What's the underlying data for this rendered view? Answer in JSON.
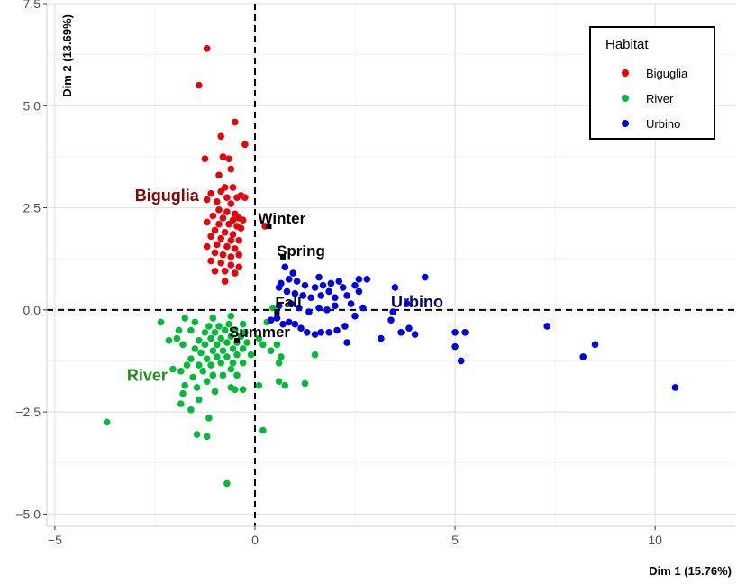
{
  "chart_data": {
    "type": "scatter",
    "xlabel": "Dim 1 (15.76%)",
    "ylabel": "Dim 2 (13.69%)",
    "xlim": [
      -5.2,
      12.0
    ],
    "ylim": [
      -5.3,
      7.5
    ],
    "x_ticks": [
      -5,
      0,
      5,
      10
    ],
    "y_ticks": [
      -5.0,
      -2.5,
      0.0,
      2.5,
      5.0,
      7.5
    ],
    "x_tick_labels": [
      "−5",
      "0",
      "5",
      "10"
    ],
    "y_tick_labels": [
      "−5.0",
      "−2.5",
      "0.0",
      "2.5",
      "5.0",
      "7.5"
    ],
    "grid": true,
    "reference_lines": {
      "x": 0,
      "y": 0,
      "style": "dashed"
    },
    "legend": {
      "title": "Habitat",
      "position": "top-right"
    },
    "series": [
      {
        "name": "Biguglia",
        "color": "#e8000b",
        "points": [
          [
            -1.2,
            6.4
          ],
          [
            -1.4,
            5.5
          ],
          [
            -0.5,
            4.6
          ],
          [
            -0.85,
            4.25
          ],
          [
            -0.25,
            4.05
          ],
          [
            -0.8,
            3.75
          ],
          [
            -1.25,
            3.7
          ],
          [
            -0.65,
            3.7
          ],
          [
            -0.6,
            3.45
          ],
          [
            -0.9,
            3.3
          ],
          [
            -0.75,
            3.0
          ],
          [
            -0.55,
            3.0
          ],
          [
            -0.85,
            2.9
          ],
          [
            -1.1,
            2.85
          ],
          [
            -0.35,
            2.8
          ],
          [
            -0.7,
            2.75
          ],
          [
            -0.45,
            2.75
          ],
          [
            -1.2,
            2.7
          ],
          [
            -0.95,
            2.65
          ],
          [
            -0.6,
            2.6
          ],
          [
            -0.25,
            2.75
          ],
          [
            -0.9,
            2.45
          ],
          [
            -0.7,
            2.4
          ],
          [
            -0.5,
            2.35
          ],
          [
            -1.05,
            2.3
          ],
          [
            -0.8,
            2.25
          ],
          [
            -0.55,
            2.2
          ],
          [
            -0.4,
            2.25
          ],
          [
            -1.2,
            2.15
          ],
          [
            -0.9,
            2.1
          ],
          [
            -0.65,
            2.1
          ],
          [
            -0.45,
            2.05
          ],
          [
            -0.35,
            2.0
          ],
          [
            -1.0,
            1.95
          ],
          [
            -0.75,
            1.9
          ],
          [
            -0.55,
            1.85
          ],
          [
            -1.1,
            1.8
          ],
          [
            -0.85,
            1.75
          ],
          [
            -0.6,
            1.7
          ],
          [
            -0.4,
            1.7
          ],
          [
            -0.95,
            1.6
          ],
          [
            -0.7,
            1.55
          ],
          [
            -1.2,
            1.55
          ],
          [
            -0.5,
            1.5
          ],
          [
            -1.0,
            1.4
          ],
          [
            -0.8,
            1.35
          ],
          [
            -0.6,
            1.3
          ],
          [
            -0.4,
            1.35
          ],
          [
            -1.1,
            1.2
          ],
          [
            -0.85,
            1.15
          ],
          [
            -0.6,
            1.1
          ],
          [
            -0.4,
            1.05
          ],
          [
            -1.0,
            0.95
          ],
          [
            -0.75,
            0.95
          ],
          [
            -0.5,
            0.9
          ],
          [
            -0.75,
            0.7
          ],
          [
            0.25,
            2.05
          ],
          [
            -0.3,
            2.2
          ]
        ]
      },
      {
        "name": "River",
        "color": "#00ba38",
        "points": [
          [
            -3.7,
            -2.75
          ],
          [
            -0.7,
            -4.25
          ],
          [
            -1.45,
            -3.05
          ],
          [
            -1.2,
            -3.1
          ],
          [
            0.2,
            -2.95
          ],
          [
            -1.15,
            -2.65
          ],
          [
            -1.6,
            -2.45
          ],
          [
            -1.85,
            -2.3
          ],
          [
            -1.4,
            -2.2
          ],
          [
            -1.8,
            -2.05
          ],
          [
            -1.0,
            -2.0
          ],
          [
            -0.5,
            -1.95
          ],
          [
            -0.3,
            -1.95
          ],
          [
            -0.6,
            -1.9
          ],
          [
            -1.45,
            -1.9
          ],
          [
            -1.75,
            -1.85
          ],
          [
            0.1,
            -1.85
          ],
          [
            0.75,
            -1.85
          ],
          [
            -1.2,
            -1.75
          ],
          [
            0.6,
            -1.75
          ],
          [
            1.25,
            -1.8
          ],
          [
            -1.55,
            -1.65
          ],
          [
            -1.05,
            -1.6
          ],
          [
            -0.8,
            -1.6
          ],
          [
            -1.3,
            -1.5
          ],
          [
            -1.85,
            -1.5
          ],
          [
            -2.05,
            -1.45
          ],
          [
            -0.6,
            -1.45
          ],
          [
            -1.7,
            -1.35
          ],
          [
            -1.4,
            -1.35
          ],
          [
            -1.1,
            -1.35
          ],
          [
            -0.85,
            -1.3
          ],
          [
            -0.55,
            -1.3
          ],
          [
            -0.3,
            -1.3
          ],
          [
            0.6,
            -1.3
          ],
          [
            -1.2,
            -1.2
          ],
          [
            -0.95,
            -1.15
          ],
          [
            -0.7,
            -1.15
          ],
          [
            -0.45,
            -1.1
          ],
          [
            -1.6,
            -1.2
          ],
          [
            0.65,
            -1.15
          ],
          [
            -1.35,
            -1.05
          ],
          [
            -1.05,
            -1.0
          ],
          [
            -0.8,
            -1.0
          ],
          [
            -0.55,
            -0.95
          ],
          [
            -0.3,
            -0.95
          ],
          [
            -1.5,
            -0.95
          ],
          [
            0.4,
            -1.0
          ],
          [
            1.5,
            -1.1
          ],
          [
            -1.25,
            -0.85
          ],
          [
            -0.95,
            -0.85
          ],
          [
            -0.7,
            -0.8
          ],
          [
            -0.45,
            -0.8
          ],
          [
            -0.2,
            -0.8
          ],
          [
            -1.8,
            -0.85
          ],
          [
            0.2,
            -0.85
          ],
          [
            0.55,
            -0.85
          ],
          [
            -1.4,
            -0.75
          ],
          [
            -1.1,
            -0.7
          ],
          [
            -0.85,
            -0.7
          ],
          [
            -0.6,
            -0.65
          ],
          [
            -0.35,
            -0.65
          ],
          [
            -2.15,
            -0.75
          ],
          [
            -1.95,
            -0.7
          ],
          [
            0.1,
            -0.7
          ],
          [
            -1.25,
            -0.55
          ],
          [
            -1.0,
            -0.55
          ],
          [
            -0.75,
            -0.5
          ],
          [
            -0.5,
            -0.5
          ],
          [
            -1.6,
            -0.5
          ],
          [
            -1.9,
            -0.5
          ],
          [
            -0.25,
            -0.55
          ],
          [
            -1.15,
            -0.4
          ],
          [
            -0.9,
            -0.4
          ],
          [
            -0.65,
            -0.35
          ],
          [
            -1.5,
            -0.3
          ],
          [
            -0.3,
            -0.35
          ],
          [
            0.3,
            -0.3
          ],
          [
            -1.75,
            -0.2
          ],
          [
            -1.05,
            -0.2
          ],
          [
            -2.35,
            -0.3
          ],
          [
            -0.6,
            -0.15
          ],
          [
            0.45,
            0.05
          ],
          [
            -0.45,
            -1.6
          ],
          [
            -0.1,
            -1.1
          ]
        ]
      },
      {
        "name": "Urbino",
        "color": "#0000e6",
        "points": [
          [
            10.5,
            -1.9
          ],
          [
            8.5,
            -0.85
          ],
          [
            8.2,
            -1.15
          ],
          [
            7.3,
            -0.4
          ],
          [
            5.15,
            -1.25
          ],
          [
            5.0,
            -0.9
          ],
          [
            5.25,
            -0.55
          ],
          [
            5.0,
            -0.55
          ],
          [
            4.0,
            -0.6
          ],
          [
            3.65,
            -0.55
          ],
          [
            3.85,
            -0.45
          ],
          [
            3.4,
            -0.25
          ],
          [
            3.15,
            -0.7
          ],
          [
            2.3,
            -0.8
          ],
          [
            2.25,
            -0.4
          ],
          [
            2.05,
            -0.5
          ],
          [
            1.85,
            -0.55
          ],
          [
            1.65,
            -0.55
          ],
          [
            1.5,
            -0.6
          ],
          [
            1.3,
            -0.55
          ],
          [
            1.15,
            -0.45
          ],
          [
            1.0,
            -0.35
          ],
          [
            0.85,
            -0.3
          ],
          [
            0.7,
            -0.35
          ],
          [
            0.55,
            -0.2
          ],
          [
            0.4,
            -0.25
          ],
          [
            2.5,
            -0.15
          ],
          [
            2.7,
            0.05
          ],
          [
            2.4,
            0.15
          ],
          [
            2.0,
            0.1
          ],
          [
            1.8,
            0.0
          ],
          [
            1.6,
            0.05
          ],
          [
            1.35,
            -0.05
          ],
          [
            1.1,
            0.05
          ],
          [
            0.9,
            0.15
          ],
          [
            0.6,
            0.1
          ],
          [
            2.0,
            0.3
          ],
          [
            2.3,
            0.35
          ],
          [
            2.6,
            0.45
          ],
          [
            2.2,
            0.55
          ],
          [
            2.5,
            0.6
          ],
          [
            1.85,
            0.45
          ],
          [
            1.65,
            0.35
          ],
          [
            1.4,
            0.3
          ],
          [
            1.2,
            0.35
          ],
          [
            1.0,
            0.4
          ],
          [
            0.8,
            0.45
          ],
          [
            0.6,
            0.55
          ],
          [
            1.5,
            0.55
          ],
          [
            1.7,
            0.6
          ],
          [
            1.9,
            0.65
          ],
          [
            2.1,
            0.7
          ],
          [
            1.25,
            0.6
          ],
          [
            1.05,
            0.7
          ],
          [
            0.85,
            0.75
          ],
          [
            0.65,
            0.65
          ],
          [
            0.95,
            0.9
          ],
          [
            0.75,
            1.05
          ],
          [
            2.6,
            0.75
          ],
          [
            2.8,
            0.75
          ],
          [
            3.5,
            0.55
          ],
          [
            4.25,
            0.8
          ],
          [
            3.8,
            0.15
          ],
          [
            3.45,
            -0.05
          ],
          [
            1.6,
            0.8
          ]
        ]
      }
    ],
    "season_markers": [
      {
        "name": "Winter",
        "x": 0.35,
        "y": 2.05
      },
      {
        "name": "Spring",
        "x": 0.7,
        "y": 1.3
      },
      {
        "name": "Fall",
        "x": 0.55,
        "y": -0.05
      },
      {
        "name": "Summer",
        "x": -0.45,
        "y": -0.75
      }
    ],
    "habitat_labels": [
      {
        "name": "Biguglia",
        "x": -3.0,
        "y": 2.8,
        "color": "#8b0000"
      },
      {
        "name": "River",
        "x": -3.2,
        "y": -1.6,
        "color": "#228b22"
      },
      {
        "name": "Urbino",
        "x": 3.4,
        "y": 0.2,
        "color": "#00008b"
      }
    ]
  }
}
